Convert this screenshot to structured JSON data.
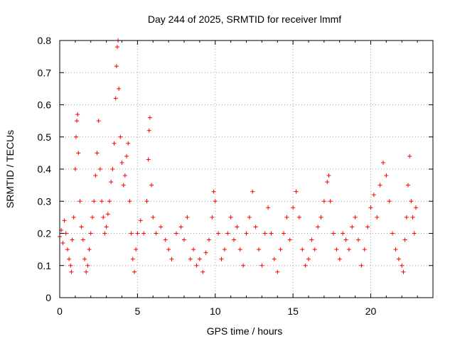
{
  "chart_data": {
    "type": "scatter",
    "title": "Day 244 of 2025, SRMTID for receiver lmmf",
    "xlabel": "GPS time / hours",
    "ylabel": "SRMTID / TECUs",
    "xlim": [
      0,
      24
    ],
    "ylim": [
      0,
      0.8
    ],
    "xticks": [
      0,
      5,
      10,
      15,
      20
    ],
    "xtick_labels": [
      "0",
      "5",
      "10",
      "15",
      "20"
    ],
    "yticks": [
      0,
      0.1,
      0.2,
      0.3,
      0.4,
      0.5,
      0.6,
      0.7,
      0.8
    ],
    "ytick_labels": [
      "0",
      "0.1",
      "0.2",
      "0.3",
      "0.4",
      "0.5",
      "0.6",
      "0.7",
      "0.8"
    ],
    "grid": true,
    "marker": "+",
    "color": "#ff0000",
    "series": [
      {
        "name": "SRMTID",
        "points": [
          [
            0.0,
            0.19
          ],
          [
            0.1,
            0.21
          ],
          [
            0.2,
            0.17
          ],
          [
            0.3,
            0.24
          ],
          [
            0.4,
            0.2
          ],
          [
            0.5,
            0.15
          ],
          [
            0.6,
            0.12
          ],
          [
            0.7,
            0.1
          ],
          [
            0.75,
            0.08
          ],
          [
            0.8,
            0.18
          ],
          [
            0.9,
            0.25
          ],
          [
            1.0,
            0.4
          ],
          [
            1.05,
            0.5
          ],
          [
            1.1,
            0.55
          ],
          [
            1.15,
            0.57
          ],
          [
            1.2,
            0.45
          ],
          [
            1.3,
            0.3
          ],
          [
            1.4,
            0.22
          ],
          [
            1.5,
            0.18
          ],
          [
            1.6,
            0.12
          ],
          [
            1.7,
            0.08
          ],
          [
            1.8,
            0.1
          ],
          [
            1.9,
            0.15
          ],
          [
            2.0,
            0.2
          ],
          [
            2.1,
            0.25
          ],
          [
            2.2,
            0.3
          ],
          [
            2.3,
            0.38
          ],
          [
            2.4,
            0.45
          ],
          [
            2.5,
            0.55
          ],
          [
            2.6,
            0.4
          ],
          [
            2.7,
            0.3
          ],
          [
            2.8,
            0.25
          ],
          [
            2.9,
            0.2
          ],
          [
            3.0,
            0.22
          ],
          [
            3.1,
            0.26
          ],
          [
            3.2,
            0.3
          ],
          [
            3.3,
            0.36
          ],
          [
            3.4,
            0.4
          ],
          [
            3.5,
            0.48
          ],
          [
            3.6,
            0.62
          ],
          [
            3.65,
            0.72
          ],
          [
            3.7,
            0.78
          ],
          [
            3.75,
            0.8
          ],
          [
            3.8,
            0.65
          ],
          [
            3.9,
            0.5
          ],
          [
            4.0,
            0.42
          ],
          [
            4.1,
            0.35
          ],
          [
            4.2,
            0.38
          ],
          [
            4.3,
            0.44
          ],
          [
            4.4,
            0.48
          ],
          [
            4.5,
            0.3
          ],
          [
            4.6,
            0.2
          ],
          [
            4.7,
            0.12
          ],
          [
            4.8,
            0.08
          ],
          [
            4.9,
            0.15
          ],
          [
            5.0,
            0.2
          ],
          [
            5.2,
            0.24
          ],
          [
            5.4,
            0.2
          ],
          [
            5.6,
            0.3
          ],
          [
            5.7,
            0.43
          ],
          [
            5.75,
            0.52
          ],
          [
            5.8,
            0.56
          ],
          [
            5.9,
            0.35
          ],
          [
            6.0,
            0.25
          ],
          [
            6.2,
            0.2
          ],
          [
            6.5,
            0.22
          ],
          [
            6.8,
            0.18
          ],
          [
            7.0,
            0.15
          ],
          [
            7.2,
            0.12
          ],
          [
            7.5,
            0.2
          ],
          [
            7.8,
            0.22
          ],
          [
            8.0,
            0.18
          ],
          [
            8.2,
            0.25
          ],
          [
            8.4,
            0.12
          ],
          [
            8.6,
            0.15
          ],
          [
            8.8,
            0.1
          ],
          [
            9.0,
            0.12
          ],
          [
            9.2,
            0.08
          ],
          [
            9.4,
            0.14
          ],
          [
            9.6,
            0.18
          ],
          [
            9.8,
            0.25
          ],
          [
            9.9,
            0.33
          ],
          [
            10.0,
            0.3
          ],
          [
            10.2,
            0.2
          ],
          [
            10.4,
            0.12
          ],
          [
            10.6,
            0.15
          ],
          [
            10.8,
            0.2
          ],
          [
            11.0,
            0.25
          ],
          [
            11.2,
            0.18
          ],
          [
            11.4,
            0.22
          ],
          [
            11.6,
            0.15
          ],
          [
            11.8,
            0.1
          ],
          [
            12.0,
            0.2
          ],
          [
            12.2,
            0.25
          ],
          [
            12.4,
            0.33
          ],
          [
            12.6,
            0.22
          ],
          [
            12.8,
            0.15
          ],
          [
            13.0,
            0.1
          ],
          [
            13.2,
            0.2
          ],
          [
            13.4,
            0.28
          ],
          [
            13.6,
            0.2
          ],
          [
            13.8,
            0.12
          ],
          [
            14.0,
            0.08
          ],
          [
            14.2,
            0.15
          ],
          [
            14.4,
            0.2
          ],
          [
            14.6,
            0.25
          ],
          [
            14.8,
            0.18
          ],
          [
            15.0,
            0.28
          ],
          [
            15.2,
            0.33
          ],
          [
            15.4,
            0.25
          ],
          [
            15.6,
            0.15
          ],
          [
            15.8,
            0.1
          ],
          [
            16.0,
            0.12
          ],
          [
            16.2,
            0.18
          ],
          [
            16.4,
            0.15
          ],
          [
            16.6,
            0.22
          ],
          [
            16.8,
            0.25
          ],
          [
            17.0,
            0.3
          ],
          [
            17.2,
            0.36
          ],
          [
            17.3,
            0.38
          ],
          [
            17.4,
            0.3
          ],
          [
            17.6,
            0.2
          ],
          [
            17.8,
            0.15
          ],
          [
            18.0,
            0.12
          ],
          [
            18.2,
            0.2
          ],
          [
            18.4,
            0.18
          ],
          [
            18.6,
            0.15
          ],
          [
            18.8,
            0.22
          ],
          [
            19.0,
            0.25
          ],
          [
            19.2,
            0.18
          ],
          [
            19.4,
            0.1
          ],
          [
            19.6,
            0.15
          ],
          [
            19.8,
            0.22
          ],
          [
            20.0,
            0.28
          ],
          [
            20.2,
            0.32
          ],
          [
            20.4,
            0.25
          ],
          [
            20.6,
            0.35
          ],
          [
            20.8,
            0.42
          ],
          [
            21.0,
            0.38
          ],
          [
            21.2,
            0.3
          ],
          [
            21.4,
            0.2
          ],
          [
            21.6,
            0.15
          ],
          [
            21.8,
            0.12
          ],
          [
            22.0,
            0.1
          ],
          [
            22.1,
            0.08
          ],
          [
            22.2,
            0.18
          ],
          [
            22.3,
            0.25
          ],
          [
            22.4,
            0.35
          ],
          [
            22.5,
            0.44
          ],
          [
            22.6,
            0.3
          ],
          [
            22.7,
            0.25
          ],
          [
            22.8,
            0.2
          ],
          [
            22.9,
            0.28
          ]
        ]
      }
    ]
  }
}
